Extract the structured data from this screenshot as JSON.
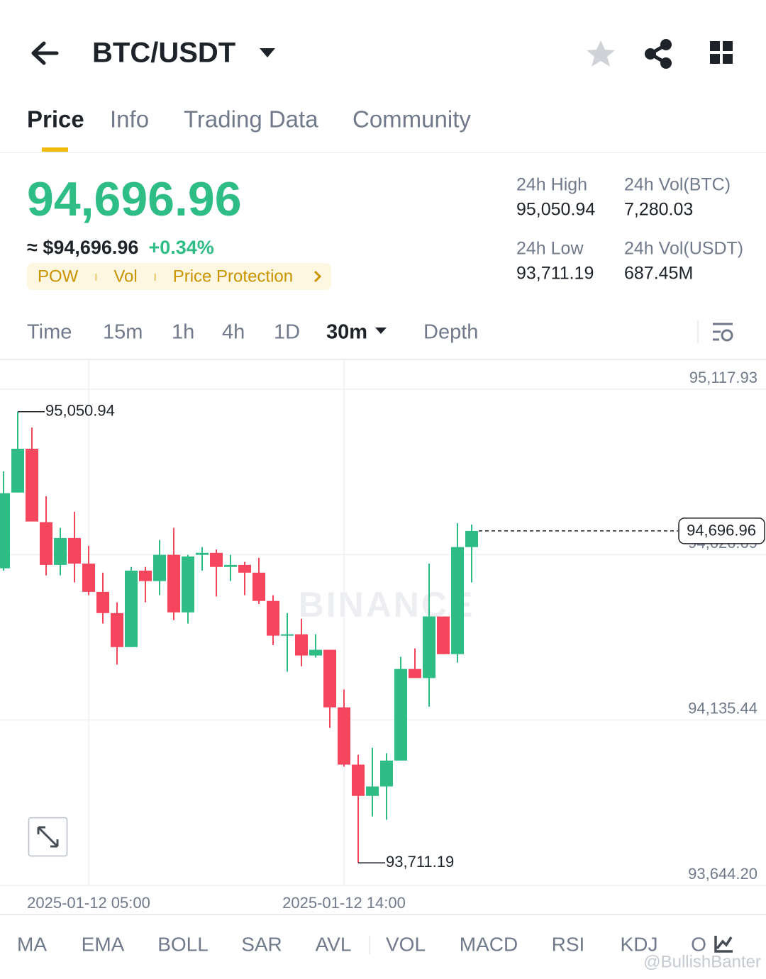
{
  "header": {
    "title": "BTC/USDT"
  },
  "tabs": [
    "Price",
    "Info",
    "Trading Data",
    "Community"
  ],
  "summary": {
    "price": "94,696.96",
    "approx": "≈ $94,696.96",
    "change": "+0.34%",
    "tags": [
      "POW",
      "Vol",
      "Price Protection"
    ]
  },
  "stats": [
    {
      "label": "24h High",
      "value": "95,050.94"
    },
    {
      "label": "24h Vol(BTC)",
      "value": "7,280.03"
    },
    {
      "label": "24h Low",
      "value": "93,711.19"
    },
    {
      "label": "24h Vol(USDT)",
      "value": "687.45M"
    }
  ],
  "intervals": [
    "Time",
    "15m",
    "1h",
    "4h",
    "1D",
    "30m",
    "Depth"
  ],
  "chart_data": {
    "type": "candlestick",
    "categories": [
      null,
      null,
      null,
      null,
      null,
      null,
      "2025-01-12 05:00",
      null,
      null,
      null,
      null,
      null,
      null,
      null,
      null,
      null,
      null,
      null,
      null,
      null,
      null,
      null,
      null,
      null,
      "2025-01-12 14:00",
      null,
      null,
      null,
      null,
      null,
      null,
      null,
      null,
      null
    ],
    "open": [
      94586,
      94811,
      94941,
      94723,
      94596,
      94676,
      94600,
      94516,
      94453,
      94352,
      94579,
      94548,
      94626,
      94455,
      94626,
      94632,
      94590,
      94596,
      94573,
      94489,
      94386,
      94390,
      94327,
      94344,
      94173,
      94003,
      93910,
      93938,
      94015,
      94287,
      94260,
      94443,
      94331,
      94649
    ],
    "high": [
      94874,
      95050.94,
      95004,
      94800,
      94706,
      94754,
      94653,
      94573,
      94485,
      94590,
      94590,
      94670,
      94706,
      94626,
      94649,
      94642,
      94626,
      94605,
      94617,
      94506,
      94453,
      94436,
      94390,
      94344,
      94226,
      94032,
      94053,
      94037,
      94323,
      94348,
      94600,
      94443,
      94720,
      94716
    ],
    "low": [
      94579,
      94811,
      94725,
      94565,
      94565,
      94544,
      94506,
      94422,
      94300,
      94352,
      94485,
      94506,
      94432,
      94422,
      94579,
      94502,
      94548,
      94506,
      94480,
      94358,
      94279,
      94295,
      94321,
      94112,
      93997,
      93711.19,
      93849,
      93839,
      94015,
      94260,
      94175,
      94331,
      94306,
      94544
    ],
    "close": [
      94809,
      94941,
      94725,
      94596,
      94676,
      94600,
      94516,
      94453,
      94352,
      94579,
      94548,
      94626,
      94455,
      94621,
      94632,
      94590,
      94596,
      94573,
      94489,
      94386,
      94390,
      94327,
      94344,
      94173,
      94003,
      93910,
      93938,
      94015,
      94287,
      94260,
      94443,
      94331,
      94649,
      94696.96
    ],
    "up_color": "#2ebd85",
    "down_color": "#f6465d",
    "ylim": [
      93644.2,
      95206.3
    ],
    "yticks": [
      {
        "value": 95117.93,
        "label": "95,117.93"
      },
      {
        "value": 94626.69,
        "label": "94,626.69"
      },
      {
        "value": 94135.44,
        "label": "94,135.44"
      },
      {
        "value": 93644.2,
        "label": "93,644.20"
      }
    ],
    "grid": true,
    "annotations": [
      {
        "value": 95050.94,
        "label": "95,050.94"
      },
      {
        "value": 93711.19,
        "label": "93,711.19"
      }
    ],
    "last_price": {
      "value": 94696.96,
      "label": "94,696.96"
    },
    "watermark": "BINANCE"
  },
  "indicators": [
    "MA",
    "EMA",
    "BOLL",
    "SAR",
    "AVL",
    "VOL",
    "MACD",
    "RSI",
    "KDJ",
    "O"
  ],
  "watermark": "@BullishBanter"
}
